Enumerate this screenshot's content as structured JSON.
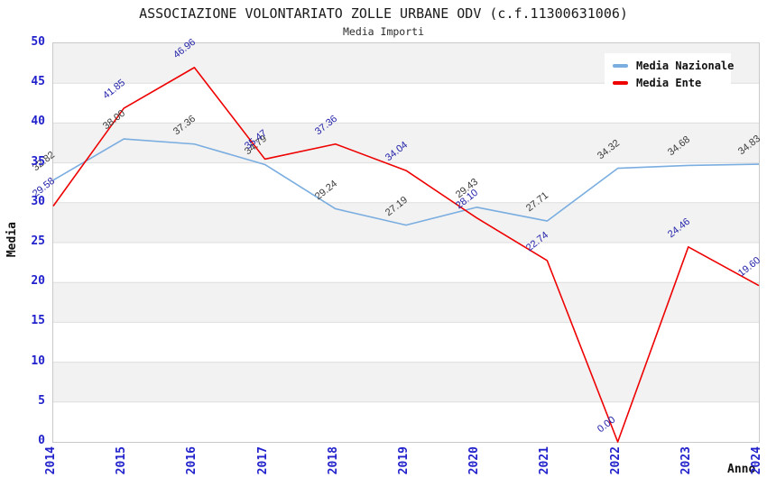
{
  "title": "ASSOCIAZIONE VOLONTARIATO ZOLLE URBANE ODV (c.f.11300631006)",
  "subtitle": "Media Importi",
  "chart_data": {
    "type": "line",
    "x": [
      "2014",
      "2015",
      "2016",
      "2017",
      "2018",
      "2019",
      "2020",
      "2021",
      "2022",
      "2023",
      "2024"
    ],
    "series": [
      {
        "name": "Media Nazionale",
        "color": "#7aade0",
        "label_color": "#3a3a3a",
        "values": [
          32.82,
          38.0,
          37.36,
          34.79,
          29.24,
          27.19,
          29.43,
          27.71,
          34.32,
          34.68,
          34.83
        ]
      },
      {
        "name": "Media Ente",
        "color": "#ee0000",
        "label_color": "#2222aa",
        "values": [
          29.58,
          41.85,
          46.96,
          35.47,
          37.36,
          34.04,
          28.1,
          22.74,
          0.0,
          24.46,
          19.6
        ]
      }
    ],
    "xlabel": "Anno",
    "ylabel": "Media",
    "ylim": [
      0,
      50
    ],
    "ytick_step": 5,
    "y_ticks": [
      0,
      5,
      10,
      15,
      20,
      25,
      30,
      35,
      40,
      45,
      50
    ],
    "tick_color": "#2222cc",
    "grid": "horizontal-bands",
    "band_color": "#f2f2f2",
    "gridline_color": "#dedede",
    "legend_position": "top-right",
    "value_label_decimals": 2
  }
}
